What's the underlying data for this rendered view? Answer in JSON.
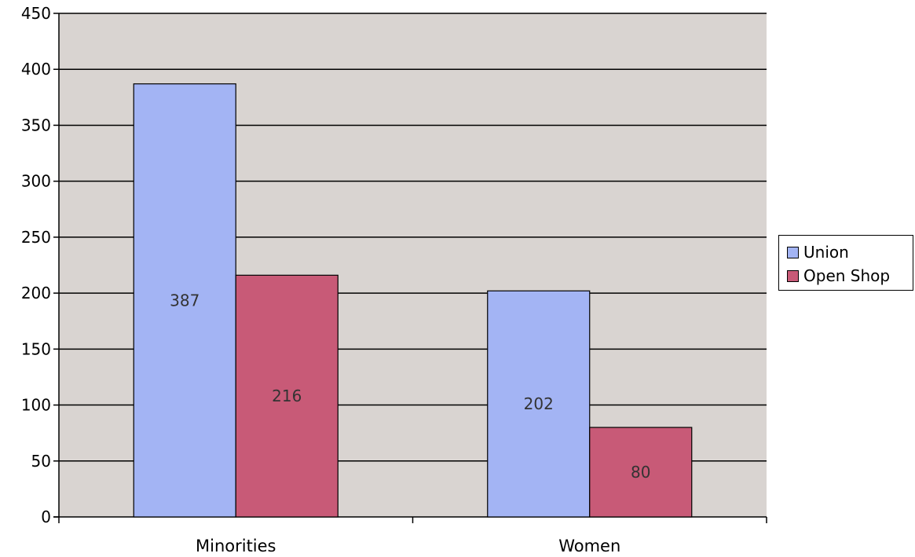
{
  "chart_data": {
    "type": "bar",
    "title": "",
    "xlabel": "",
    "ylabel": "",
    "categories": [
      "Minorities",
      "Women"
    ],
    "series": [
      {
        "name": "Union",
        "values": [
          387,
          202
        ],
        "color": "#a3b4f4"
      },
      {
        "name": "Open Shop",
        "values": [
          216,
          80
        ],
        "color": "#c85a77"
      }
    ],
    "ylim": [
      0,
      450
    ],
    "yticks": [
      0,
      50,
      100,
      150,
      200,
      250,
      300,
      350,
      400,
      450
    ],
    "ytick_labels": [
      "0",
      "50",
      "100",
      "150",
      "200",
      "250",
      "300",
      "350",
      "400",
      "450"
    ],
    "grid": true,
    "legend_position": "right",
    "plot_background": "#d9d4d1",
    "data_labels": true
  }
}
